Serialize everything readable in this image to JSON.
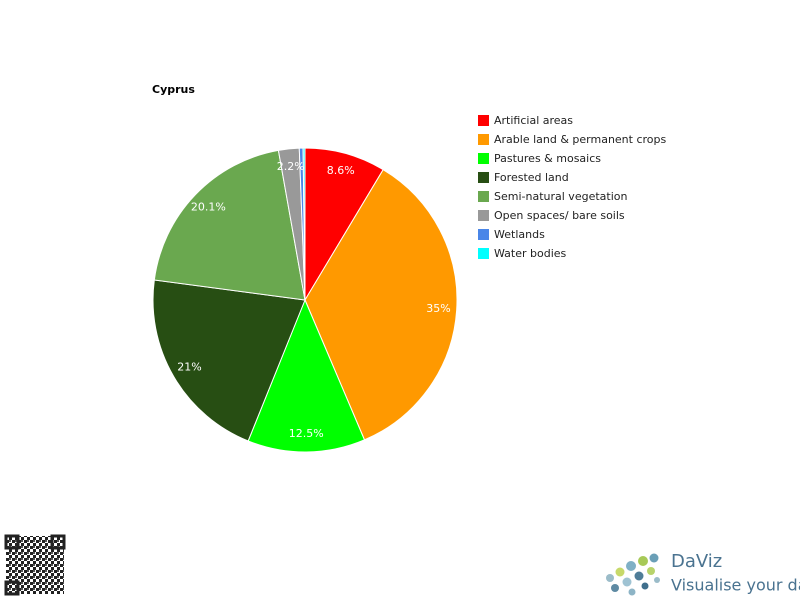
{
  "chart_data": {
    "type": "pie",
    "title": "Cyprus",
    "categories": [
      "Artificial areas",
      "Arable land & permanent crops",
      "Pastures & mosaics",
      "Forested land",
      "Semi-natural vegetation",
      "Open spaces/ bare soils",
      "Wetlands",
      "Water bodies"
    ],
    "values": [
      8.6,
      35,
      12.5,
      21,
      20.1,
      2.2,
      0.4,
      0.2
    ],
    "value_labels": [
      "8.6%",
      "35%",
      "12.5%",
      "21%",
      "20.1%",
      "2.2%",
      null,
      null
    ],
    "colors": [
      "#ff0000",
      "#ff9900",
      "#00ff00",
      "#274e13",
      "#6aa84f",
      "#999999",
      "#4a86e8",
      "#00ffff"
    ],
    "legend": "right"
  },
  "branding": {
    "name": "DaViz",
    "tagline": "Visualise your data"
  }
}
